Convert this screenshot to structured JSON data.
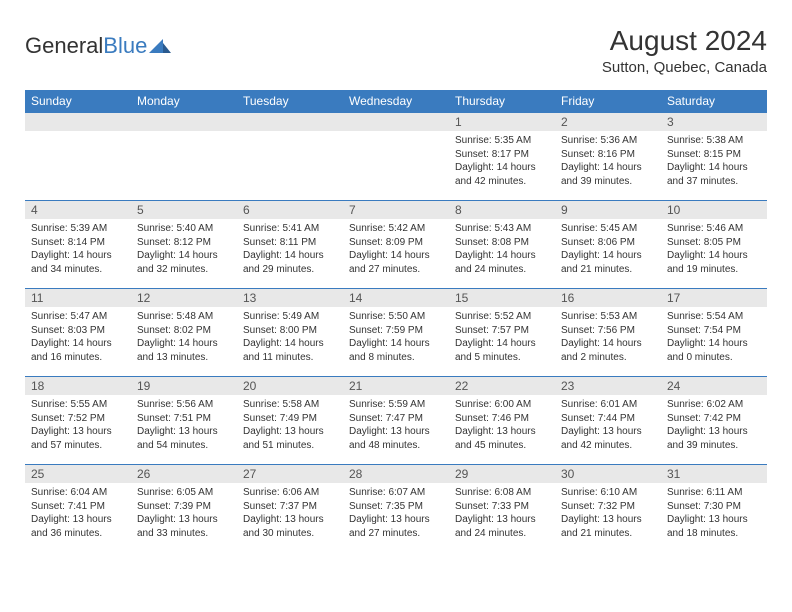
{
  "logo": {
    "word1": "General",
    "word2": "Blue"
  },
  "title": "August 2024",
  "location": "Sutton, Quebec, Canada",
  "header_bg": "#3a7bbf",
  "daynum_bg": "#e8e8e8",
  "weekdays": [
    "Sunday",
    "Monday",
    "Tuesday",
    "Wednesday",
    "Thursday",
    "Friday",
    "Saturday"
  ],
  "weeks": [
    [
      null,
      null,
      null,
      null,
      {
        "n": "1",
        "sr": "5:35 AM",
        "ss": "8:17 PM",
        "dl": "14 hours and 42 minutes."
      },
      {
        "n": "2",
        "sr": "5:36 AM",
        "ss": "8:16 PM",
        "dl": "14 hours and 39 minutes."
      },
      {
        "n": "3",
        "sr": "5:38 AM",
        "ss": "8:15 PM",
        "dl": "14 hours and 37 minutes."
      }
    ],
    [
      {
        "n": "4",
        "sr": "5:39 AM",
        "ss": "8:14 PM",
        "dl": "14 hours and 34 minutes."
      },
      {
        "n": "5",
        "sr": "5:40 AM",
        "ss": "8:12 PM",
        "dl": "14 hours and 32 minutes."
      },
      {
        "n": "6",
        "sr": "5:41 AM",
        "ss": "8:11 PM",
        "dl": "14 hours and 29 minutes."
      },
      {
        "n": "7",
        "sr": "5:42 AM",
        "ss": "8:09 PM",
        "dl": "14 hours and 27 minutes."
      },
      {
        "n": "8",
        "sr": "5:43 AM",
        "ss": "8:08 PM",
        "dl": "14 hours and 24 minutes."
      },
      {
        "n": "9",
        "sr": "5:45 AM",
        "ss": "8:06 PM",
        "dl": "14 hours and 21 minutes."
      },
      {
        "n": "10",
        "sr": "5:46 AM",
        "ss": "8:05 PM",
        "dl": "14 hours and 19 minutes."
      }
    ],
    [
      {
        "n": "11",
        "sr": "5:47 AM",
        "ss": "8:03 PM",
        "dl": "14 hours and 16 minutes."
      },
      {
        "n": "12",
        "sr": "5:48 AM",
        "ss": "8:02 PM",
        "dl": "14 hours and 13 minutes."
      },
      {
        "n": "13",
        "sr": "5:49 AM",
        "ss": "8:00 PM",
        "dl": "14 hours and 11 minutes."
      },
      {
        "n": "14",
        "sr": "5:50 AM",
        "ss": "7:59 PM",
        "dl": "14 hours and 8 minutes."
      },
      {
        "n": "15",
        "sr": "5:52 AM",
        "ss": "7:57 PM",
        "dl": "14 hours and 5 minutes."
      },
      {
        "n": "16",
        "sr": "5:53 AM",
        "ss": "7:56 PM",
        "dl": "14 hours and 2 minutes."
      },
      {
        "n": "17",
        "sr": "5:54 AM",
        "ss": "7:54 PM",
        "dl": "14 hours and 0 minutes."
      }
    ],
    [
      {
        "n": "18",
        "sr": "5:55 AM",
        "ss": "7:52 PM",
        "dl": "13 hours and 57 minutes."
      },
      {
        "n": "19",
        "sr": "5:56 AM",
        "ss": "7:51 PM",
        "dl": "13 hours and 54 minutes."
      },
      {
        "n": "20",
        "sr": "5:58 AM",
        "ss": "7:49 PM",
        "dl": "13 hours and 51 minutes."
      },
      {
        "n": "21",
        "sr": "5:59 AM",
        "ss": "7:47 PM",
        "dl": "13 hours and 48 minutes."
      },
      {
        "n": "22",
        "sr": "6:00 AM",
        "ss": "7:46 PM",
        "dl": "13 hours and 45 minutes."
      },
      {
        "n": "23",
        "sr": "6:01 AM",
        "ss": "7:44 PM",
        "dl": "13 hours and 42 minutes."
      },
      {
        "n": "24",
        "sr": "6:02 AM",
        "ss": "7:42 PM",
        "dl": "13 hours and 39 minutes."
      }
    ],
    [
      {
        "n": "25",
        "sr": "6:04 AM",
        "ss": "7:41 PM",
        "dl": "13 hours and 36 minutes."
      },
      {
        "n": "26",
        "sr": "6:05 AM",
        "ss": "7:39 PM",
        "dl": "13 hours and 33 minutes."
      },
      {
        "n": "27",
        "sr": "6:06 AM",
        "ss": "7:37 PM",
        "dl": "13 hours and 30 minutes."
      },
      {
        "n": "28",
        "sr": "6:07 AM",
        "ss": "7:35 PM",
        "dl": "13 hours and 27 minutes."
      },
      {
        "n": "29",
        "sr": "6:08 AM",
        "ss": "7:33 PM",
        "dl": "13 hours and 24 minutes."
      },
      {
        "n": "30",
        "sr": "6:10 AM",
        "ss": "7:32 PM",
        "dl": "13 hours and 21 minutes."
      },
      {
        "n": "31",
        "sr": "6:11 AM",
        "ss": "7:30 PM",
        "dl": "13 hours and 18 minutes."
      }
    ]
  ],
  "labels": {
    "sunrise": "Sunrise: ",
    "sunset": "Sunset: ",
    "daylight": "Daylight: "
  }
}
